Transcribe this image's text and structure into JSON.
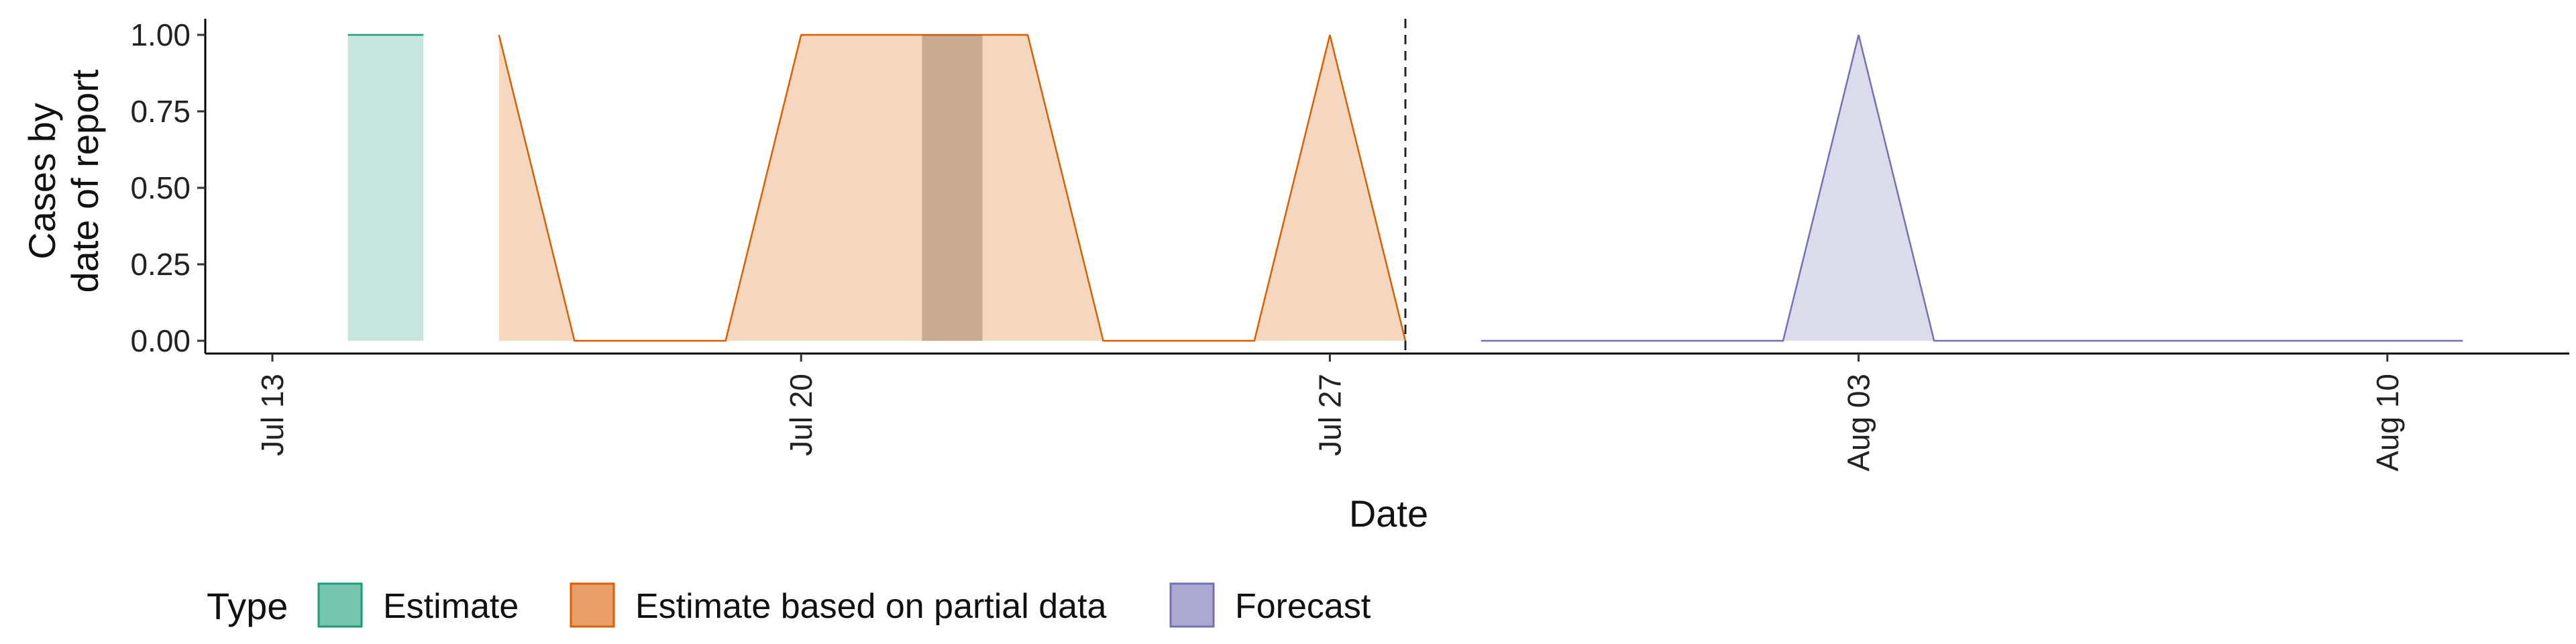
{
  "chart_data": {
    "type": "area",
    "xlabel": "Date",
    "ylabel_lines": [
      "Cases by",
      "date of report"
    ],
    "x_ticks": [
      {
        "date": "2020-07-13",
        "label": "Jul 13"
      },
      {
        "date": "2020-07-20",
        "label": "Jul 20"
      },
      {
        "date": "2020-07-27",
        "label": "Jul 27"
      },
      {
        "date": "2020-08-03",
        "label": "Aug 03"
      },
      {
        "date": "2020-08-10",
        "label": "Aug 10"
      }
    ],
    "xlim": [
      "2020-07-13",
      "2020-08-12"
    ],
    "y_ticks": [
      "0.00",
      "0.25",
      "0.50",
      "0.75",
      "1.00"
    ],
    "ylim": [
      0,
      1
    ],
    "vline_date": "2020-07-28",
    "series": [
      {
        "name": "Estimate",
        "color": "#1b9e77",
        "points": [
          {
            "x": "2020-07-14",
            "y": 1
          },
          {
            "x": "2020-07-15",
            "y": 1
          }
        ]
      },
      {
        "name": "Estimate based on partial data",
        "color": "#d95f02",
        "points": [
          {
            "x": "2020-07-16",
            "y": 1
          },
          {
            "x": "2020-07-17",
            "y": 0
          },
          {
            "x": "2020-07-18",
            "y": 0
          },
          {
            "x": "2020-07-19",
            "y": 0
          },
          {
            "x": "2020-07-20",
            "y": 1
          },
          {
            "x": "2020-07-21",
            "y": 1
          },
          {
            "x": "2020-07-22",
            "y": 1
          },
          {
            "x": "2020-07-23",
            "y": 1
          },
          {
            "x": "2020-07-24",
            "y": 0
          },
          {
            "x": "2020-07-25",
            "y": 0
          },
          {
            "x": "2020-07-26",
            "y": 0
          },
          {
            "x": "2020-07-27",
            "y": 1
          },
          {
            "x": "2020-07-28",
            "y": 0
          }
        ]
      },
      {
        "name": "Forecast",
        "color": "#7570b3",
        "points": [
          {
            "x": "2020-07-29",
            "y": 0
          },
          {
            "x": "2020-07-30",
            "y": 0
          },
          {
            "x": "2020-07-31",
            "y": 0
          },
          {
            "x": "2020-08-01",
            "y": 0
          },
          {
            "x": "2020-08-02",
            "y": 0
          },
          {
            "x": "2020-08-03",
            "y": 1
          },
          {
            "x": "2020-08-04",
            "y": 0
          },
          {
            "x": "2020-08-05",
            "y": 0
          },
          {
            "x": "2020-08-06",
            "y": 0
          },
          {
            "x": "2020-08-07",
            "y": 0
          },
          {
            "x": "2020-08-08",
            "y": 0
          },
          {
            "x": "2020-08-09",
            "y": 0
          },
          {
            "x": "2020-08-10",
            "y": 0
          },
          {
            "x": "2020-08-11",
            "y": 0
          }
        ]
      }
    ],
    "overlap_band": {
      "from": "2020-07-21.6",
      "to": "2020-07-22.4"
    },
    "legend": {
      "title": "Type",
      "position": "bottom",
      "entries": [
        "Estimate",
        "Estimate based on partial data",
        "Forecast"
      ]
    },
    "grid": false
  }
}
